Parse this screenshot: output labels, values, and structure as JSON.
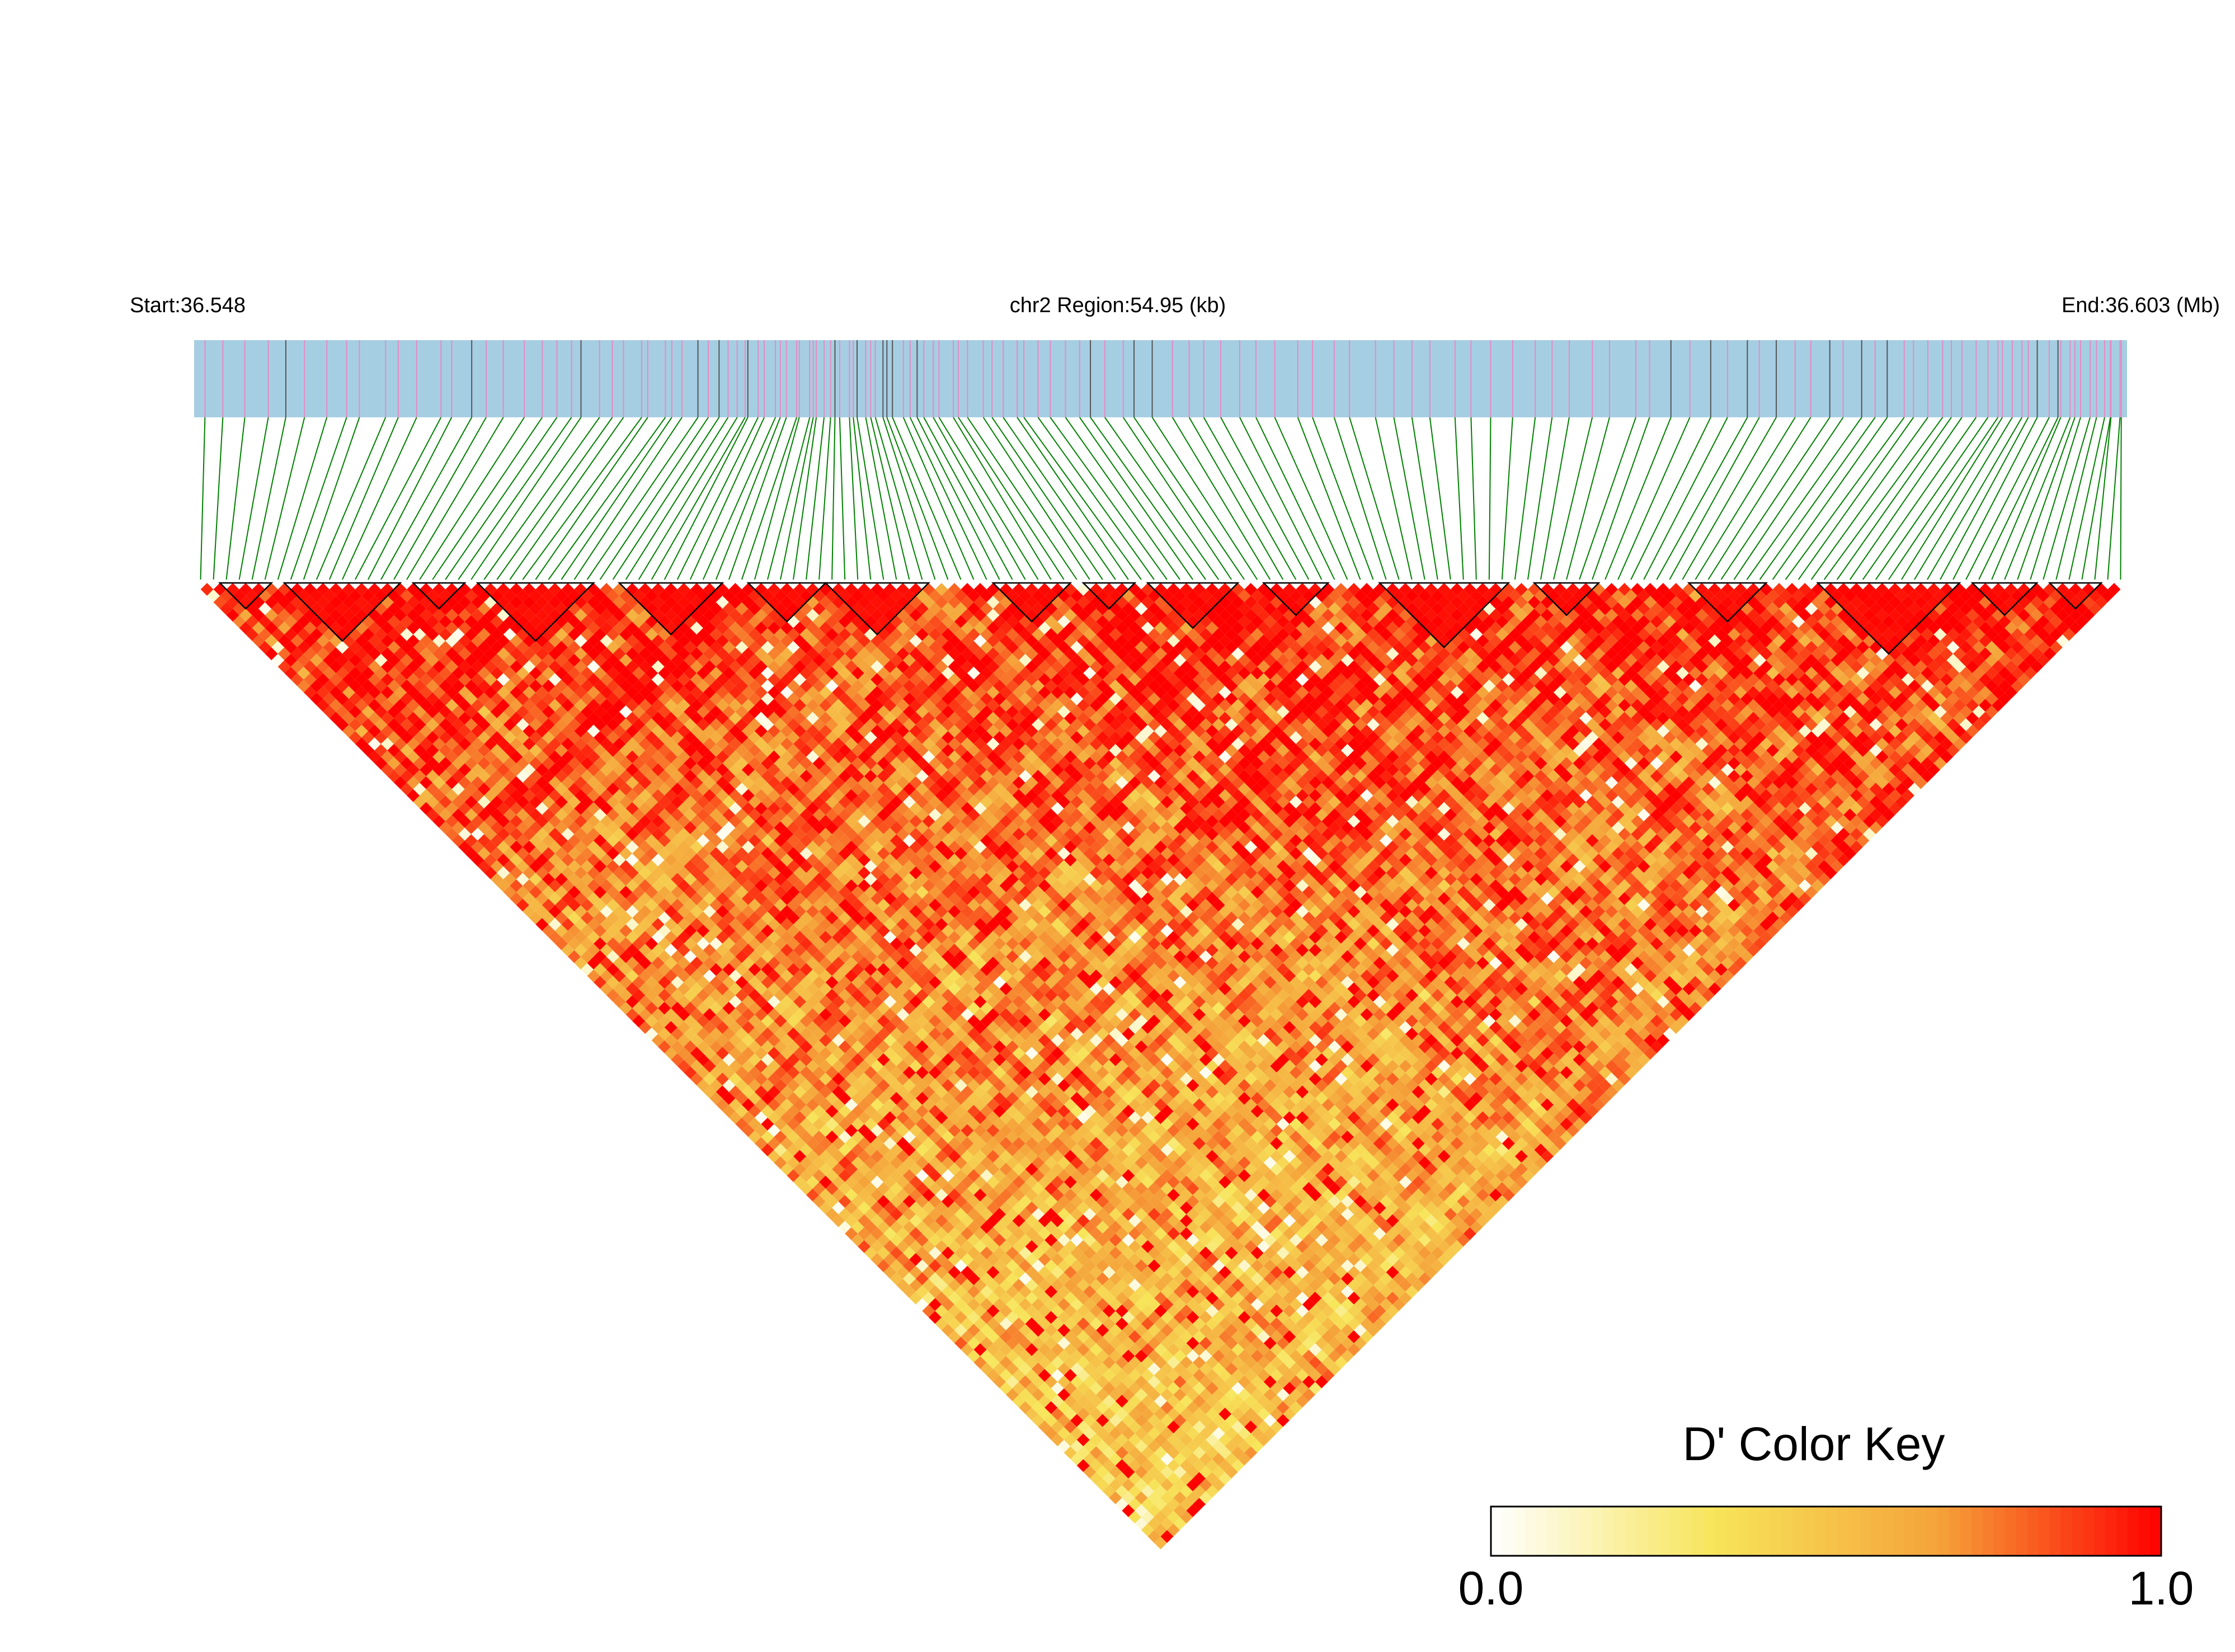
{
  "header": {
    "start_label": "Start:36.548",
    "region_label": "chr2 Region:54.95 (kb)",
    "end_label": "End:36.603 (Mb)"
  },
  "legend": {
    "title": "D' Color Key",
    "min_label": "0.0",
    "max_label": "1.0"
  },
  "colors": {
    "track_fill": "#a6cee3",
    "snp_tick": "#e78ac3",
    "snp_tick_dark": "#555555",
    "connector": "#008000",
    "high": "#ff0000",
    "mid": "#f7e55a",
    "low": "#ffffff"
  },
  "chart_data": {
    "type": "heatmap",
    "title": "chr2 Region:54.95 (kb)",
    "region": {
      "chromosome": "chr2",
      "start_mb": 36.548,
      "end_mb": 36.603,
      "span_kb": 54.95
    },
    "n_snps": 150,
    "value_range": [
      0.0,
      1.0
    ],
    "colorbar": {
      "min": 0.0,
      "max": 1.0,
      "stops": [
        "#ffffff",
        "#f7e55a",
        "#f5a33a",
        "#ff0000"
      ]
    },
    "blocks": [
      [
        2,
        5
      ],
      [
        7,
        15
      ],
      [
        17,
        20
      ],
      [
        22,
        30
      ],
      [
        33,
        40
      ],
      [
        43,
        48
      ],
      [
        49,
        56
      ],
      [
        62,
        67
      ],
      [
        69,
        72
      ],
      [
        74,
        80
      ],
      [
        83,
        87
      ],
      [
        92,
        101
      ],
      [
        104,
        108
      ],
      [
        116,
        121
      ],
      [
        126,
        136
      ],
      [
        138,
        142
      ],
      [
        144,
        147
      ]
    ]
  }
}
